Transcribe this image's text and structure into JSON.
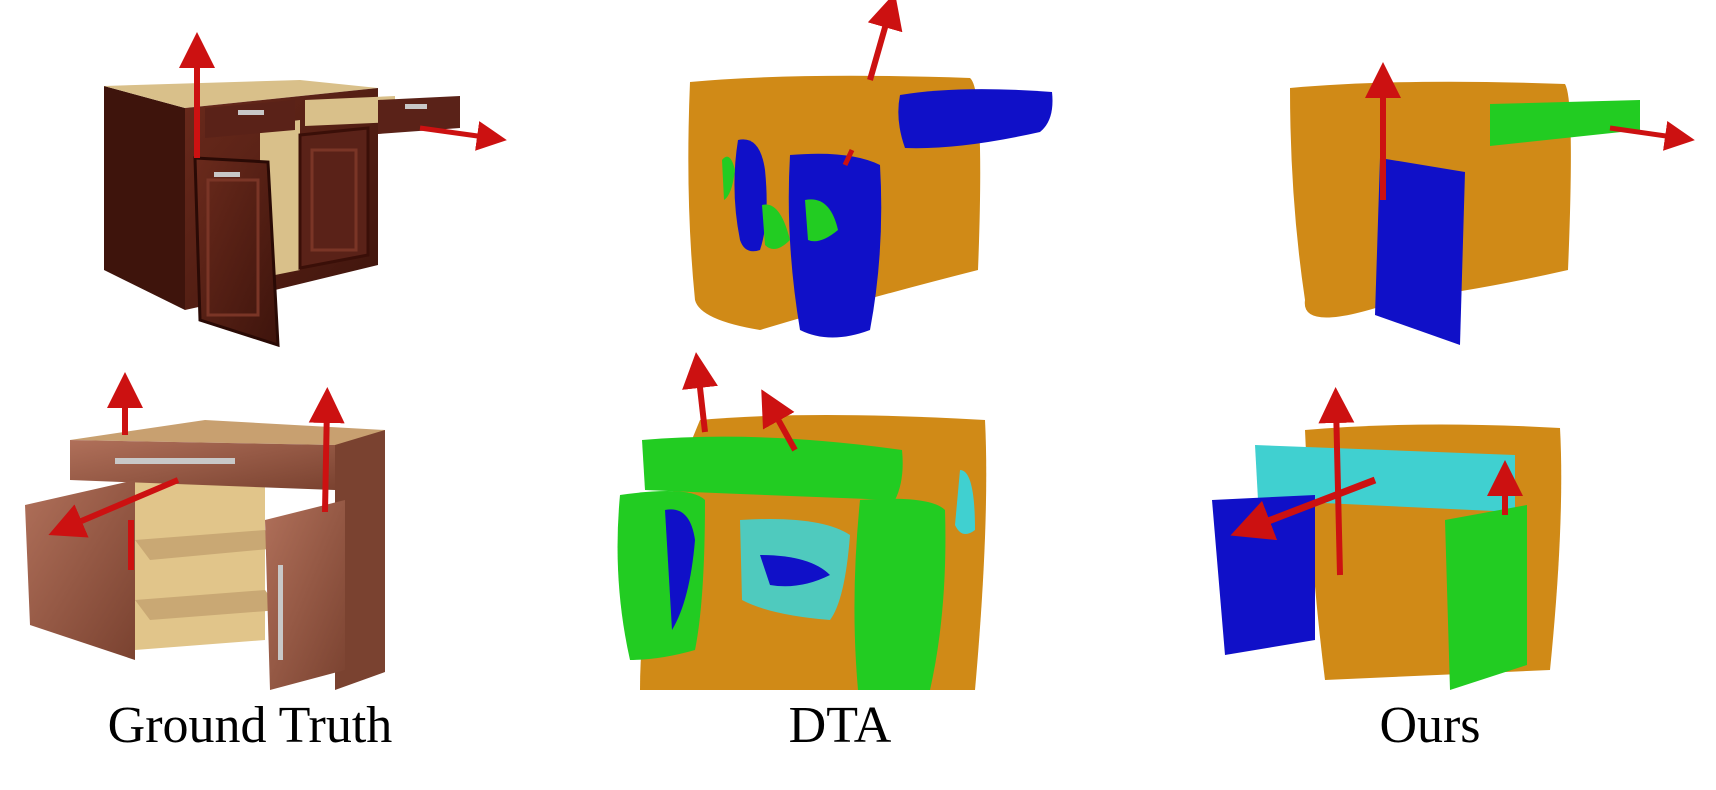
{
  "labels": {
    "ground_truth": "Ground Truth",
    "dta": "DTA",
    "ours": "Ours"
  },
  "colors": {
    "gt_dark_wood": "#5a2218",
    "gt_light_wood": "#d9c08a",
    "gt_mid_wood": "#9a5b46",
    "seg_orange": "#d08a17",
    "seg_blue": "#1010c8",
    "seg_green": "#22cc22",
    "seg_cyan": "#40d0d0",
    "axis_red": "#cc1111"
  }
}
